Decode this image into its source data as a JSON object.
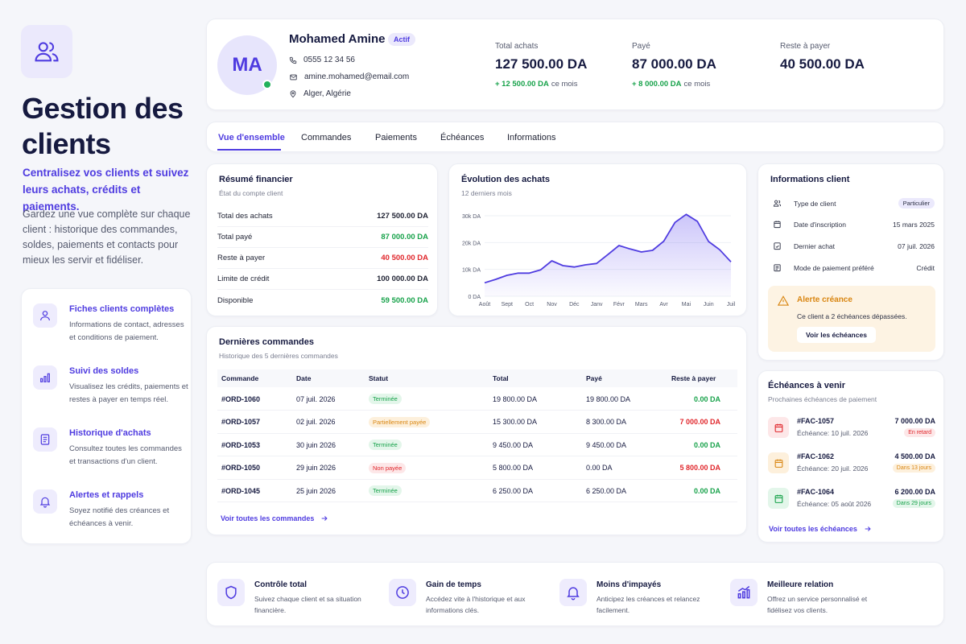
{
  "hero": {
    "title": "Gestion des clients",
    "subtitle": "Centralisez vos clients et suivez leurs achats, crédits et paiements.",
    "description": "Gardez une vue complète sur chaque client : historique des commandes, soldes, paiements et contacts pour mieux les servir et fidéliser."
  },
  "features": [
    {
      "title": "Fiches clients complètes",
      "desc": "Informations de contact, adresses et conditions de paiement.",
      "icon": "user-icon"
    },
    {
      "title": "Suivi des soldes",
      "desc": "Visualisez les crédits, paiements et restes à payer en temps réel.",
      "icon": "bar-chart-icon"
    },
    {
      "title": "Historique d'achats",
      "desc": "Consultez toutes les commandes et transactions d'un client.",
      "icon": "document-icon"
    },
    {
      "title": "Alertes et rappels",
      "desc": "Soyez notifié des créances et échéances à venir.",
      "icon": "bell-icon"
    }
  ],
  "profile": {
    "initials": "MA",
    "name": "Mohamed Amine",
    "status": "Actif",
    "phone": "0555 12 34 56",
    "email": "amine.mohamed@email.com",
    "location": "Alger, Algérie",
    "stats": [
      {
        "label": "Total achats",
        "value": "127 500.00 DA",
        "delta": "+ 12 500.00 DA",
        "delta_suffix": "ce mois"
      },
      {
        "label": "Payé",
        "value": "87 000.00 DA",
        "delta": "+ 8 000.00 DA",
        "delta_suffix": "ce mois"
      },
      {
        "label": "Reste à payer",
        "value": "40 500.00 DA"
      }
    ]
  },
  "tabs": [
    "Vue d'ensemble",
    "Commandes",
    "Paiements",
    "Échéances",
    "Informations"
  ],
  "resume": {
    "title": "Résumé financier",
    "subtitle": "État du compte client",
    "rows": [
      {
        "label": "Total des achats",
        "value": "127 500.00 DA"
      },
      {
        "label": "Total payé",
        "value": "87 000.00 DA"
      },
      {
        "label": "Reste à payer",
        "value": "40 500.00 DA"
      },
      {
        "label": "Limite de crédit",
        "value": "100 000.00 DA"
      },
      {
        "label": "Disponible",
        "value": "59 500.00 DA"
      }
    ]
  },
  "chart_data": {
    "type": "area",
    "title": "Évolution des achats",
    "subtitle": "12 derniers mois",
    "ylabel": "",
    "xlabel": "",
    "ylim": [
      0,
      30000
    ],
    "yticks": [
      "0 DA",
      "10k DA",
      "20k DA",
      "30k DA"
    ],
    "x": [
      "Août",
      "",
      "Sept",
      "",
      "Oct",
      "",
      "Nov",
      "",
      "Déc",
      "",
      "Janv",
      "",
      "Févr",
      "",
      "Mars",
      "",
      "Avr",
      "",
      "Mai",
      "",
      "Juin",
      "",
      "Juil"
    ],
    "xlabels": [
      "Août",
      "Sept",
      "Oct",
      "Nov",
      "Déc",
      "Janv",
      "Févr",
      "Mars",
      "Avr",
      "Mai",
      "Juin",
      "Juil"
    ],
    "values": [
      5000,
      6300,
      7800,
      8600,
      8600,
      9800,
      13200,
      11400,
      10900,
      11700,
      12200,
      15500,
      18900,
      17600,
      16500,
      17100,
      20500,
      27500,
      30500,
      27900,
      20400,
      17300,
      12800
    ],
    "color": "#4f3ce0"
  },
  "info": {
    "title": "Informations client",
    "rows": [
      {
        "label": "Type de client",
        "value": "Particulier",
        "icon": "users-icon"
      },
      {
        "label": "Date d'inscription",
        "value": "15 mars 2025",
        "icon": "calendar-icon"
      },
      {
        "label": "Dernier achat",
        "value": "07 juil. 2026",
        "icon": "edit-icon"
      },
      {
        "label": "Mode de paiement préféré",
        "value": "Crédit",
        "icon": "wallet-icon"
      }
    ],
    "alert_title": "Alerte créance",
    "alert_text": "Ce client a 2 échéances dépassées.",
    "alert_button": "Voir les échéances"
  },
  "orders": {
    "title": "Dernières commandes",
    "subtitle": "Historique des 5 dernières commandes",
    "columns": [
      "Commande",
      "Date",
      "Statut",
      "Total",
      "Payé",
      "Reste à payer"
    ],
    "rows": [
      {
        "id": "#ORD-1060",
        "date": "07 juil. 2026",
        "status": "Terminée",
        "total": "19 800.00 DA",
        "paid": "19 800.00 DA",
        "rest": "0.00 DA"
      },
      {
        "id": "#ORD-1057",
        "date": "02 juil. 2026",
        "status": "Partiellement payée",
        "total": "15 300.00 DA",
        "paid": "8 300.00 DA",
        "rest": "7 000.00 DA"
      },
      {
        "id": "#ORD-1053",
        "date": "30 juin 2026",
        "status": "Terminée",
        "total": "9 450.00 DA",
        "paid": "9 450.00 DA",
        "rest": "0.00 DA"
      },
      {
        "id": "#ORD-1050",
        "date": "29 juin 2026",
        "status": "Non payée",
        "total": "5 800.00 DA",
        "paid": "0.00 DA",
        "rest": "5 800.00 DA"
      },
      {
        "id": "#ORD-1045",
        "date": "25 juin 2026",
        "status": "Terminée",
        "total": "6 250.00 DA",
        "paid": "6 250.00 DA",
        "rest": "0.00 DA"
      }
    ],
    "link": "Voir toutes les commandes"
  },
  "echeances": {
    "title": "Échéances à venir",
    "subtitle": "Prochaines échéances de paiement",
    "rows": [
      {
        "id": "#FAC-1057",
        "date": "Échéance: 10 juil. 2026",
        "amount": "7 000.00 DA",
        "badge": "En retard",
        "color": "#e0262b",
        "bg": "#fde7e8"
      },
      {
        "id": "#FAC-1062",
        "date": "Échéance: 20 juil. 2026",
        "amount": "4 500.00 DA",
        "badge": "Dans 13 jours",
        "color": "#d98612",
        "bg": "#fdf0dc"
      },
      {
        "id": "#FAC-1064",
        "date": "Échéance: 05 août 2026",
        "amount": "6 200.00 DA",
        "badge": "Dans 29 jours",
        "color": "#17a24a",
        "bg": "#e3f6ea"
      }
    ],
    "link": "Voir toutes les échéances"
  },
  "bottom": [
    {
      "title": "Contrôle total",
      "desc": "Suivez chaque client et sa situation financière.",
      "icon": "shield-icon"
    },
    {
      "title": "Gain de temps",
      "desc": "Accédez vite à l'historique et aux informations clés.",
      "icon": "clock-icon"
    },
    {
      "title": "Moins d'impayés",
      "desc": "Anticipez les créances et relancez facilement.",
      "icon": "bell-icon"
    },
    {
      "title": "Meilleure relation",
      "desc": "Offrez un service personnalisé et fidélisez vos clients.",
      "icon": "growth-chart-icon"
    }
  ]
}
